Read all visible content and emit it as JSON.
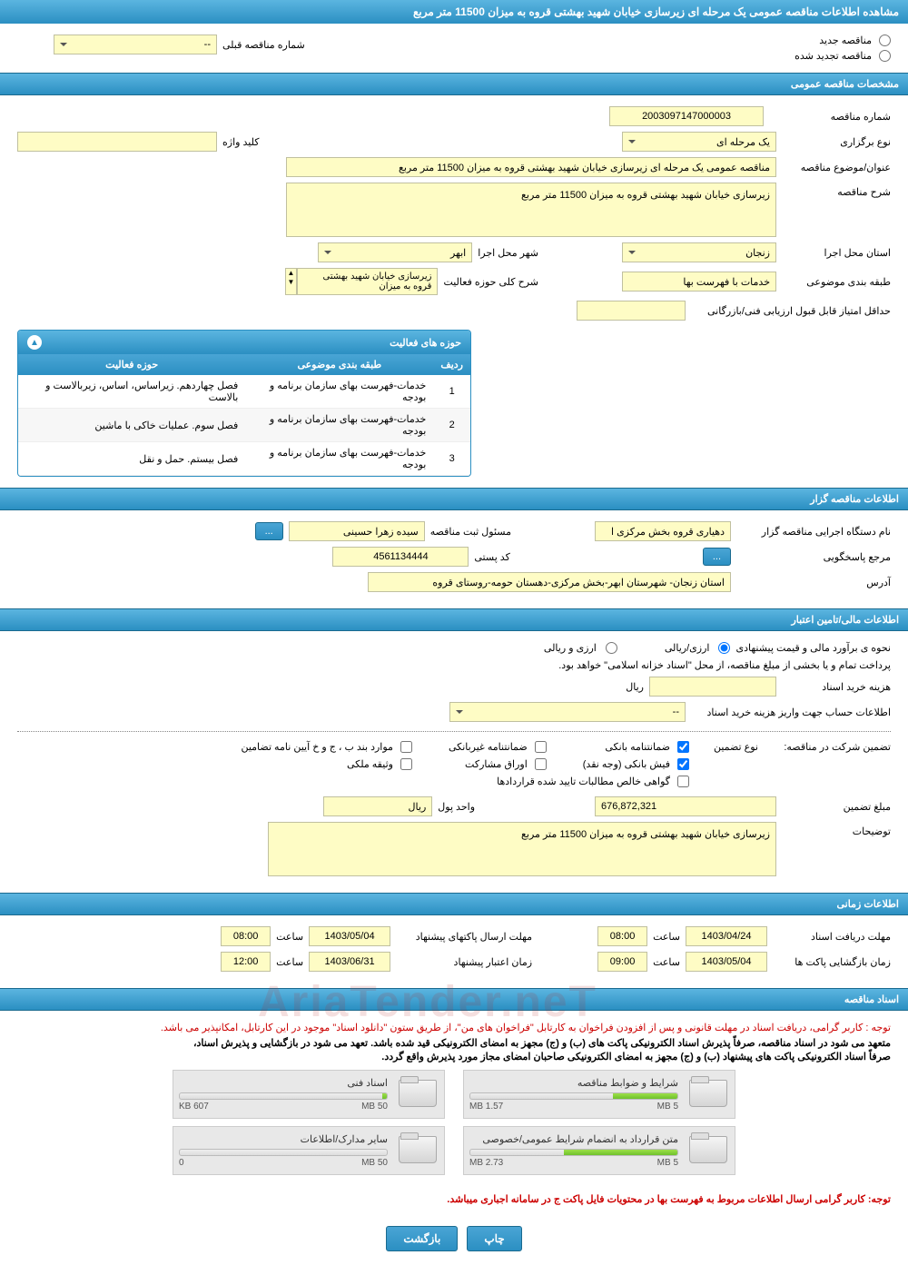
{
  "page_title": "مشاهده اطلاعات مناقصه عمومی یک مرحله ای زیرسازی خیابان شهید بهشتی قروه به میزان 11500 متر مربع",
  "tender_mode": {
    "new_label": "مناقصه جدید",
    "renewed_label": "مناقصه تجدید شده",
    "prev_number_label": "شماره مناقصه قبلی",
    "prev_number_value": "--"
  },
  "sections": {
    "general": "مشخصات مناقصه عمومی",
    "organizer": "اطلاعات مناقصه گزار",
    "financial": "اطلاعات مالی/تامین اعتبار",
    "timing": "اطلاعات زمانی",
    "documents": "اسناد مناقصه"
  },
  "general": {
    "tender_number_label": "شماره مناقصه",
    "tender_number": "2003097147000003",
    "holding_type_label": "نوع برگزاری",
    "holding_type": "یک مرحله ای",
    "keyword_label": "کلید واژه",
    "keyword": "",
    "subject_label": "عنوان/موضوع مناقصه",
    "subject": "مناقصه عمومی یک مرحله ای زیرسازی خیابان شهید بهشتی قروه به میزان 11500 متر مربع",
    "description_label": "شرح مناقصه",
    "description": "زیرسازی خیابان شهید بهشتی قروه به میزان 11500 متر مربع",
    "exec_province_label": "استان محل اجرا",
    "exec_province": "زنجان",
    "exec_city_label": "شهر محل اجرا",
    "exec_city": "ابهر",
    "classification_label": "طبقه بندی موضوعی",
    "classification": "خدمات با فهرست بها",
    "activity_scope_label": "شرح کلی حوزه فعالیت",
    "activity_scope": "زیرسازی خیابان شهید بهشتی قروه به میزان",
    "min_score_label": "حداقل امتیاز قابل قبول ارزیابی فنی/بازرگانی",
    "min_score": ""
  },
  "activity_table": {
    "title": "حوزه های فعالیت",
    "columns": [
      "ردیف",
      "طبقه بندی موضوعی",
      "حوزه فعالیت"
    ],
    "rows": [
      [
        "1",
        "خدمات-فهرست بهای سازمان برنامه و بودجه",
        "فصل چهاردهم. زیراساس، اساس، زیربالاست  و بالاست"
      ],
      [
        "2",
        "خدمات-فهرست بهای سازمان برنامه و بودجه",
        "فصل سوم. عملیات خاکی با ماشین"
      ],
      [
        "3",
        "خدمات-فهرست بهای سازمان برنامه و بودجه",
        "فصل بیستم. حمل و نقل"
      ]
    ]
  },
  "organizer": {
    "org_name_label": "نام دستگاه اجرایی مناقصه گزار",
    "org_name": "دهیاری قروه بخش مرکزی ا",
    "registrar_label": "مسئول ثبت مناقصه",
    "registrar": "سیده زهرا حسینی",
    "responder_label": "مرجع پاسخگویی",
    "postal_label": "کد پستی",
    "postal": "4561134444",
    "address_label": "آدرس",
    "address": "استان زنجان- شهرستان ابهر-بخش مرکزی-دهستان حومه-روستای قروه",
    "more_btn": "..."
  },
  "financial": {
    "price_method_label": "نحوه ی برآورد مالی و قیمت پیشنهادی",
    "opt_currency": "ارزی/ریالی",
    "opt_currency_rial": "ارزی و ریالی",
    "treasury_note": "پرداخت تمام و یا بخشی از مبلغ مناقصه، از محل \"اسناد خزانه اسلامی\" خواهد بود.",
    "purchase_cost_label": "هزینه خرید اسناد",
    "currency_unit": "ریال",
    "deposit_account_label": "اطلاعات حساب جهت واریز هزینه خرید اسناد",
    "deposit_account_value": "--",
    "guarantee_label": "تضمین شرکت در مناقصه:",
    "guarantee_type_label": "نوع تضمین",
    "chk_bank_guarantee": "ضمانتنامه بانکی",
    "chk_nonbank_guarantee": "ضمانتنامه غیربانکی",
    "chk_bylaw": "موارد بند ب ، ج و خ آیین نامه تضامین",
    "chk_bank_receipt": "فیش بانکی (وجه نقد)",
    "chk_bonds": "اوراق مشارکت",
    "chk_property_deed": "وثیقه ملکی",
    "chk_net_receivables": "گواهی خالص مطالبات تایید شده قراردادها",
    "guarantee_amount_label": "مبلغ تضمین",
    "guarantee_amount": "676,872,321",
    "money_unit_label": "واحد پول",
    "money_unit": "ریال",
    "notes_label": "توضیحات",
    "notes": "زیرسازی خیابان شهید بهشتی قروه به میزان 11500 متر مربع"
  },
  "timing": {
    "receive_deadline_label": "مهلت دریافت اسناد",
    "receive_deadline_date": "1403/04/24",
    "receive_deadline_time": "08:00",
    "send_deadline_label": "مهلت ارسال پاکتهای پیشنهاد",
    "send_deadline_date": "1403/05/04",
    "send_deadline_time": "08:00",
    "opening_label": "زمان بازگشایی پاکت ها",
    "opening_date": "1403/05/04",
    "opening_time": "09:00",
    "validity_label": "زمان اعتبار پیشنهاد",
    "validity_date": "1403/06/31",
    "validity_time": "12:00",
    "time_label": "ساعت"
  },
  "documents": {
    "notice_red": "توجه : کاربر گرامی، دریافت اسناد در مهلت قانونی و پس از افزودن فراخوان به کارتابل \"فراخوان های من\"، از طریق ستون \"دانلود اسناد\" موجود در این کارتابل، امکانپذیر می باشد.",
    "notice_black1": "متعهد می شود در اسناد مناقصه، صرفاً پذیرش اسناد الکترونیکی پاکت های (ب) و (ج) مجهز به امضای الکترونیکی قید شده باشد. تعهد می شود در بازگشایی و پذیرش اسناد،",
    "notice_black2": "صرفاً اسناد الکترونیکی پاکت های پیشنهاد (ب) و (ج) مجهز به امضای الکترونیکی صاحبان امضای مجاز مورد پذیرش واقع گردد.",
    "folders": [
      {
        "title": "شرایط و ضوابط مناقصه",
        "used": "1.57 MB",
        "total": "5 MB",
        "fill_pct": 31
      },
      {
        "title": "اسناد فنی",
        "used": "607 KB",
        "total": "50 MB",
        "fill_pct": 2
      },
      {
        "title": "متن قرارداد به انضمام شرایط عمومی/خصوصی",
        "used": "2.73 MB",
        "total": "5 MB",
        "fill_pct": 55
      },
      {
        "title": "سایر مدارک/اطلاعات",
        "used": "0",
        "total": "50 MB",
        "fill_pct": 0
      }
    ],
    "footer_red": "توجه: کاربر گرامی ارسال اطلاعات مربوط به فهرست بها در محتویات فایل پاکت ج در سامانه اجباری میباشد."
  },
  "buttons": {
    "print": "چاپ",
    "back": "بازگشت"
  },
  "watermark": "AriaTender.neT",
  "colors": {
    "header_bg_top": "#5bb5e0",
    "header_bg_bottom": "#2b8fc2",
    "field_bg": "#fefcc5",
    "red": "#cc0000"
  }
}
